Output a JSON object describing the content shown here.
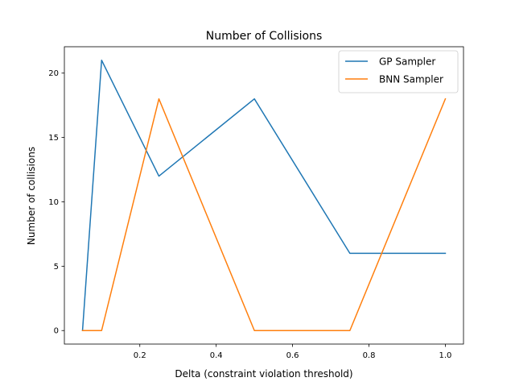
{
  "chart_data": {
    "type": "line",
    "title": "Number of Collisions",
    "xlabel": "Delta (constraint violation threshold)",
    "ylabel": "Number of collisions",
    "xlim": [
      0.0025,
      1.0475
    ],
    "ylim": [
      -1.05,
      22.05
    ],
    "xticks": [
      0.2,
      0.4,
      0.6,
      0.8,
      1.0
    ],
    "xtick_labels": [
      "0.2",
      "0.4",
      "0.6",
      "0.8",
      "1.0"
    ],
    "yticks": [
      0,
      5,
      10,
      15,
      20
    ],
    "ytick_labels": [
      "0",
      "5",
      "10",
      "15",
      "20"
    ],
    "grid": false,
    "legend_position": "top-right",
    "x": [
      0.05,
      0.1,
      0.25,
      0.5,
      0.75,
      1.0
    ],
    "series": [
      {
        "name": "GP Sampler",
        "color": "#1f77b4",
        "values": [
          0,
          21,
          12,
          18,
          6,
          6
        ]
      },
      {
        "name": "BNN Sampler",
        "color": "#ff7f0e",
        "values": [
          0,
          0,
          18,
          0,
          0,
          18
        ]
      }
    ]
  }
}
